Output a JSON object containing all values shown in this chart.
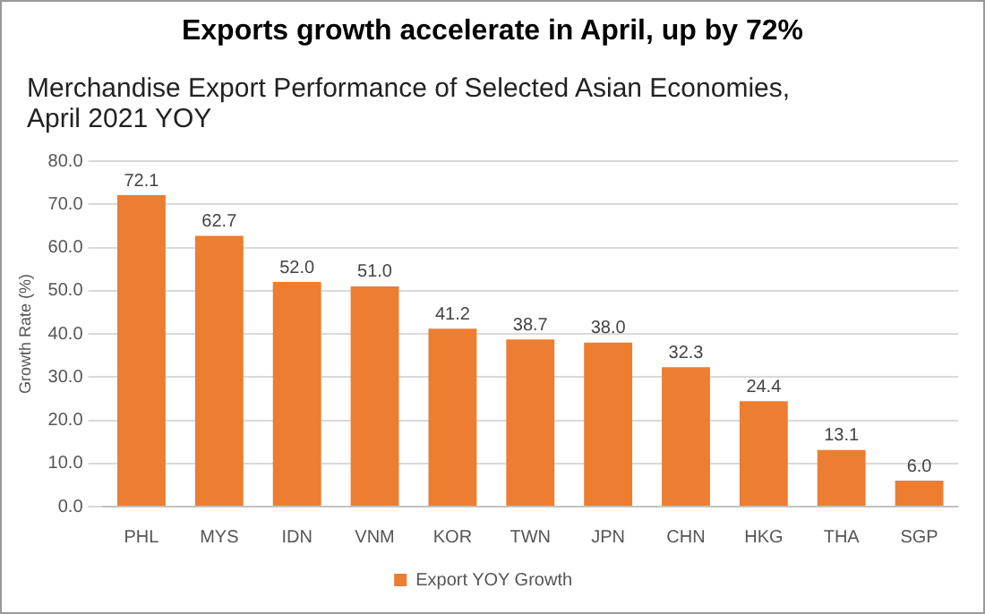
{
  "chart_data": {
    "type": "bar",
    "title": "Exports growth accelerate in April, up by 72%",
    "subtitle": "Merchandise Export Performance of Selected Asian Economies, April 2021 YOY",
    "ylabel": "Growth Rate (%)",
    "categories": [
      "PHL",
      "MYS",
      "IDN",
      "VNM",
      "KOR",
      "TWN",
      "JPN",
      "CHN",
      "HKG",
      "THA",
      "SGP"
    ],
    "series": [
      {
        "name": "Export YOY Growth",
        "color": "#ed7d31",
        "values": [
          72.1,
          62.7,
          52.0,
          51.0,
          41.2,
          38.7,
          38.0,
          32.3,
          24.4,
          13.1,
          6.0
        ]
      }
    ],
    "value_labels": [
      "72.1",
      "62.7",
      "52.0",
      "51.0",
      "41.2",
      "38.7",
      "38.0",
      "32.3",
      "24.4",
      "13.1",
      "6.0"
    ],
    "ylim": [
      0,
      80
    ],
    "yticks": [
      {
        "value": 0,
        "label": "0.0"
      },
      {
        "value": 10,
        "label": "10.0"
      },
      {
        "value": 20,
        "label": "20.0"
      },
      {
        "value": 30,
        "label": "30.0"
      },
      {
        "value": 40,
        "label": "40.0"
      },
      {
        "value": 50,
        "label": "50.0"
      },
      {
        "value": 60,
        "label": "60.0"
      },
      {
        "value": 70,
        "label": "70.0"
      },
      {
        "value": 80,
        "label": "80.0"
      }
    ],
    "grid": "y",
    "legend": "bottom"
  }
}
